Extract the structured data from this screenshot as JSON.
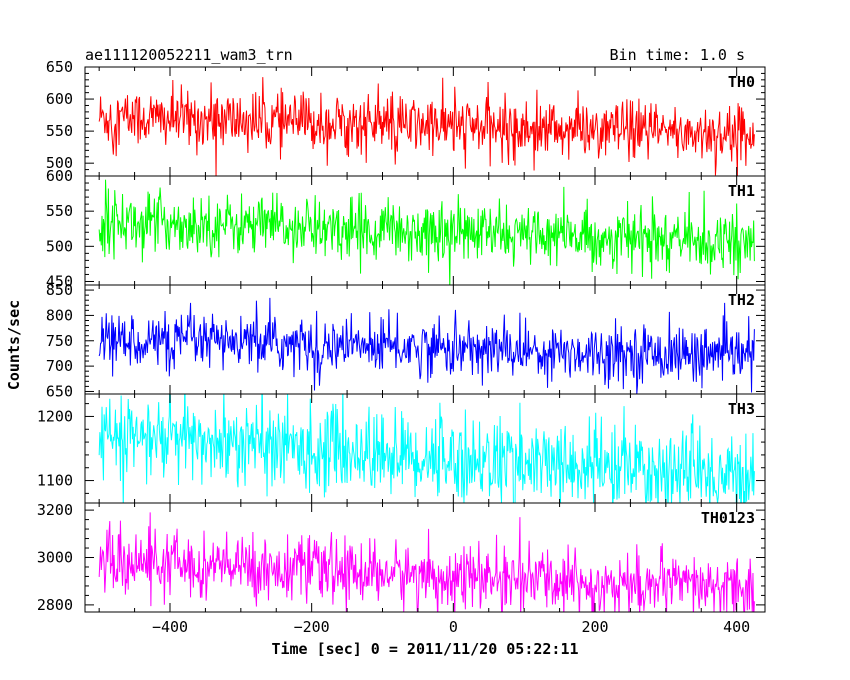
{
  "header": {
    "title": "ae111120052211_wam3_trn",
    "bin_time": "Bin time: 1.0 s"
  },
  "chart_data": {
    "type": "line",
    "title": "ae111120052211_wam3_trn",
    "xlabel": "Time [sec] 0 = 2011/11/20 05:22:11",
    "ylabel": "Counts/sec",
    "xlim": [
      -520,
      440
    ],
    "x_range": [
      -500,
      425
    ],
    "x_ticks": [
      -400,
      -200,
      0,
      200,
      400
    ],
    "x_tick_labels": [
      "−400",
      "−200",
      "0",
      "200",
      "400"
    ],
    "grid": false,
    "panels": [
      {
        "name": "TH0",
        "color": "#ff0000",
        "ylim": [
          480,
          650
        ],
        "yticks": [
          500,
          550,
          600,
          650
        ],
        "start": 572,
        "end": 545,
        "noise": 23,
        "outliers": 35
      },
      {
        "name": "TH1",
        "color": "#00ff00",
        "ylim": [
          445,
          600
        ],
        "yticks": [
          450,
          500,
          550,
          600
        ],
        "start": 537,
        "end": 505,
        "noise": 21,
        "outliers": 30
      },
      {
        "name": "TH2",
        "color": "#0000ff",
        "ylim": [
          645,
          860
        ],
        "yticks": [
          650,
          700,
          750,
          800,
          850
        ],
        "start": 752,
        "end": 720,
        "noise": 27,
        "outliers": 40
      },
      {
        "name": "TH3",
        "color": "#00ffff",
        "ylim": [
          1065,
          1235
        ],
        "yticks": [
          1100,
          1200
        ],
        "start": 1170,
        "end": 1105,
        "noise": 33,
        "outliers": 50
      },
      {
        "name": "TH0123",
        "color": "#ff00ff",
        "ylim": [
          2770,
          3230
        ],
        "yticks": [
          2800,
          3000,
          3200
        ],
        "start": 2985,
        "end": 2865,
        "noise": 65,
        "outliers": 100
      }
    ]
  }
}
